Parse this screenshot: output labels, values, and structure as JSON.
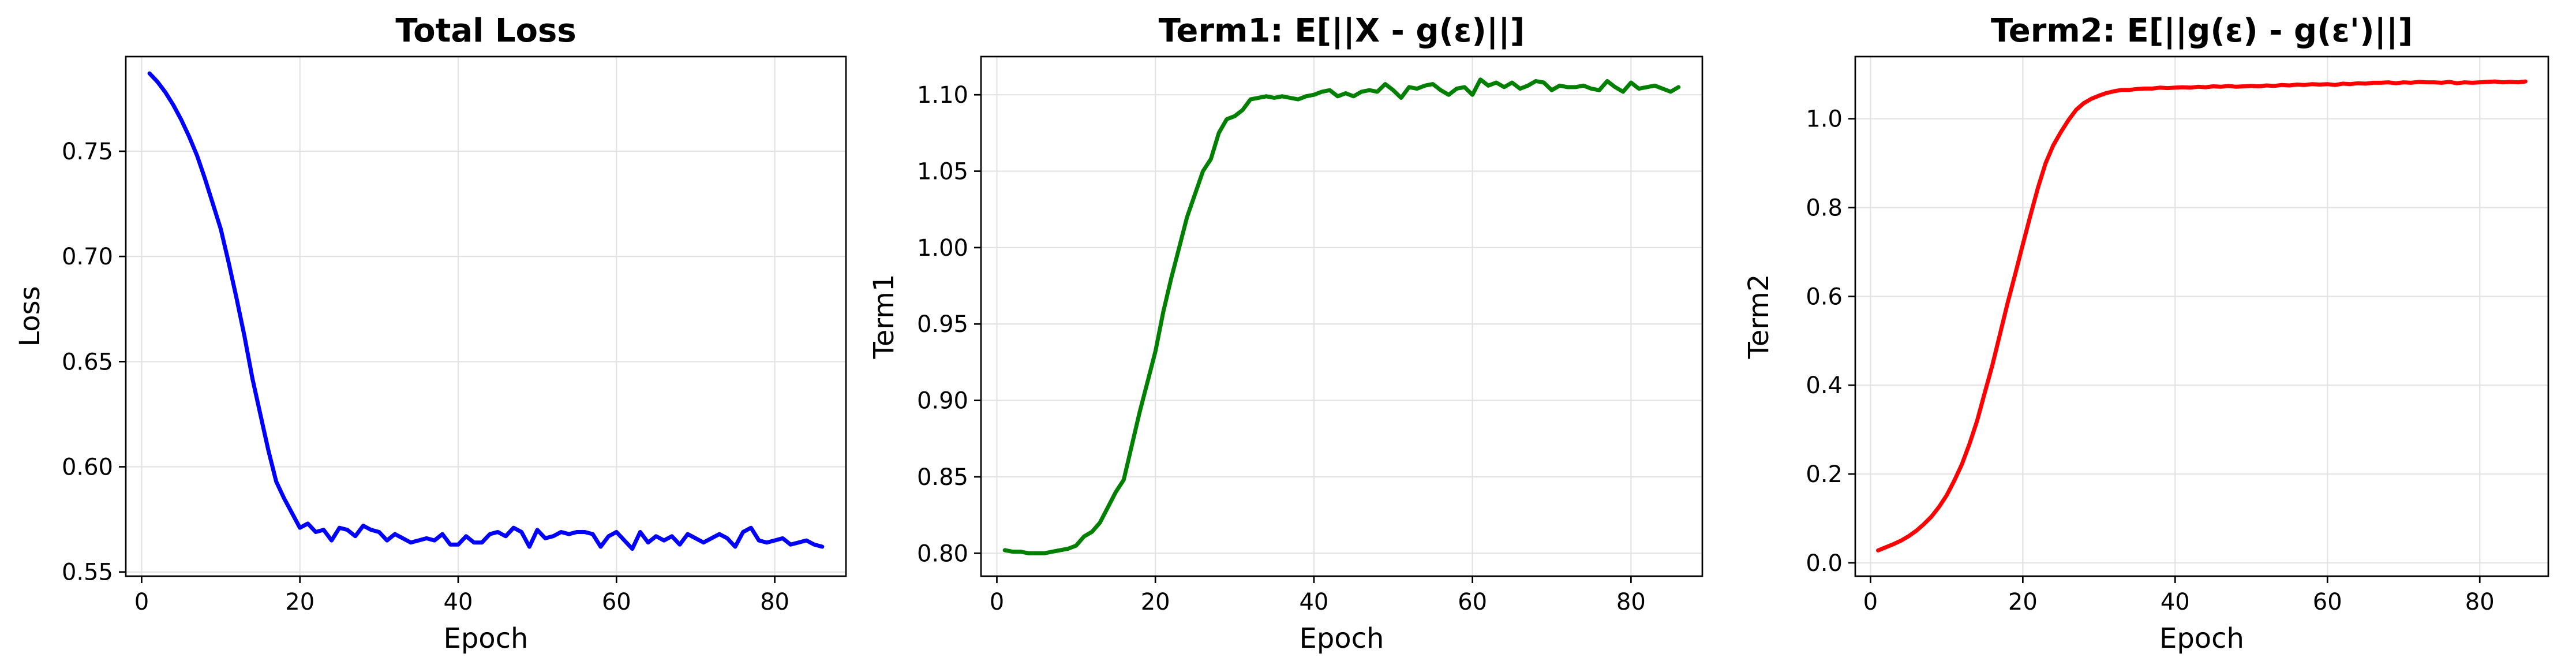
{
  "chart_data": [
    {
      "type": "line",
      "title": "Total Loss",
      "xlabel": "Epoch",
      "ylabel": "Loss",
      "xlim": [
        -2,
        89
      ],
      "ylim": [
        0.548,
        0.795
      ],
      "xticks": [
        0,
        20,
        40,
        60,
        80
      ],
      "yticks": [
        0.55,
        0.6,
        0.65,
        0.7,
        0.75
      ],
      "ytick_labels": [
        "0.55",
        "0.60",
        "0.65",
        "0.70",
        "0.75"
      ],
      "grid": true,
      "series": [
        {
          "color": "#0000ff",
          "x": [
            1,
            2,
            3,
            4,
            5,
            6,
            7,
            8,
            9,
            10,
            11,
            12,
            13,
            14,
            15,
            16,
            17,
            18,
            19,
            20,
            21,
            22,
            23,
            24,
            25,
            26,
            27,
            28,
            29,
            30,
            31,
            32,
            33,
            34,
            35,
            36,
            37,
            38,
            39,
            40,
            41,
            42,
            43,
            44,
            45,
            46,
            47,
            48,
            49,
            50,
            51,
            52,
            53,
            54,
            55,
            56,
            57,
            58,
            59,
            60,
            61,
            62,
            63,
            64,
            65,
            66,
            67,
            68,
            69,
            70,
            71,
            72,
            73,
            74,
            75,
            76,
            77,
            78,
            79,
            80,
            81,
            82,
            83,
            84,
            85,
            86
          ],
          "y": [
            0.787,
            0.783,
            0.778,
            0.772,
            0.765,
            0.757,
            0.748,
            0.737,
            0.725,
            0.713,
            0.697,
            0.68,
            0.662,
            0.642,
            0.625,
            0.608,
            0.593,
            0.585,
            0.578,
            0.571,
            0.573,
            0.569,
            0.57,
            0.565,
            0.571,
            0.57,
            0.567,
            0.572,
            0.57,
            0.569,
            0.565,
            0.568,
            0.566,
            0.564,
            0.565,
            0.566,
            0.565,
            0.568,
            0.563,
            0.563,
            0.567,
            0.564,
            0.564,
            0.568,
            0.569,
            0.567,
            0.571,
            0.569,
            0.562,
            0.57,
            0.566,
            0.567,
            0.569,
            0.568,
            0.569,
            0.569,
            0.568,
            0.562,
            0.567,
            0.569,
            0.565,
            0.561,
            0.569,
            0.564,
            0.567,
            0.565,
            0.567,
            0.563,
            0.568,
            0.566,
            0.564,
            0.566,
            0.568,
            0.566,
            0.562,
            0.569,
            0.571,
            0.565,
            0.564,
            0.565,
            0.566,
            0.563,
            0.564,
            0.565,
            0.563,
            0.562
          ]
        }
      ]
    },
    {
      "type": "line",
      "title": "Term1: E[||X - g(ε)||]",
      "xlabel": "Epoch",
      "ylabel": "Term1",
      "xlim": [
        -2,
        89
      ],
      "ylim": [
        0.785,
        1.125
      ],
      "xticks": [
        0,
        20,
        40,
        60,
        80
      ],
      "yticks": [
        0.8,
        0.85,
        0.9,
        0.95,
        1.0,
        1.05,
        1.1
      ],
      "ytick_labels": [
        "0.80",
        "0.85",
        "0.90",
        "0.95",
        "1.00",
        "1.05",
        "1.10"
      ],
      "grid": true,
      "series": [
        {
          "color": "#008000",
          "x": [
            1,
            2,
            3,
            4,
            5,
            6,
            7,
            8,
            9,
            10,
            11,
            12,
            13,
            14,
            15,
            16,
            17,
            18,
            19,
            20,
            21,
            22,
            23,
            24,
            25,
            26,
            27,
            28,
            29,
            30,
            31,
            32,
            33,
            34,
            35,
            36,
            37,
            38,
            39,
            40,
            41,
            42,
            43,
            44,
            45,
            46,
            47,
            48,
            49,
            50,
            51,
            52,
            53,
            54,
            55,
            56,
            57,
            58,
            59,
            60,
            61,
            62,
            63,
            64,
            65,
            66,
            67,
            68,
            69,
            70,
            71,
            72,
            73,
            74,
            75,
            76,
            77,
            78,
            79,
            80,
            81,
            82,
            83,
            84,
            85,
            86
          ],
          "y": [
            0.802,
            0.801,
            0.801,
            0.8,
            0.8,
            0.8,
            0.801,
            0.802,
            0.803,
            0.805,
            0.811,
            0.814,
            0.82,
            0.83,
            0.84,
            0.848,
            0.87,
            0.892,
            0.912,
            0.932,
            0.958,
            0.98,
            1.0,
            1.02,
            1.035,
            1.05,
            1.058,
            1.075,
            1.084,
            1.086,
            1.09,
            1.097,
            1.098,
            1.099,
            1.098,
            1.099,
            1.098,
            1.097,
            1.099,
            1.1,
            1.102,
            1.103,
            1.099,
            1.101,
            1.099,
            1.102,
            1.103,
            1.102,
            1.107,
            1.103,
            1.098,
            1.105,
            1.104,
            1.106,
            1.107,
            1.103,
            1.1,
            1.104,
            1.105,
            1.1,
            1.11,
            1.106,
            1.108,
            1.105,
            1.108,
            1.104,
            1.106,
            1.109,
            1.108,
            1.103,
            1.106,
            1.105,
            1.105,
            1.106,
            1.104,
            1.103,
            1.109,
            1.105,
            1.102,
            1.108,
            1.104,
            1.105,
            1.106,
            1.104,
            1.102,
            1.105
          ]
        }
      ]
    },
    {
      "type": "line",
      "title": "Term2: E[||g(ε) - g(ε')||]",
      "xlabel": "Epoch",
      "ylabel": "Term2",
      "xlim": [
        -2,
        89
      ],
      "ylim": [
        -0.03,
        1.14
      ],
      "xticks": [
        0,
        20,
        40,
        60,
        80
      ],
      "yticks": [
        0.0,
        0.2,
        0.4,
        0.6,
        0.8,
        1.0
      ],
      "ytick_labels": [
        "0.0",
        "0.2",
        "0.4",
        "0.6",
        "0.8",
        "1.0"
      ],
      "grid": true,
      "series": [
        {
          "color": "#ff0000",
          "x": [
            1,
            2,
            3,
            4,
            5,
            6,
            7,
            8,
            9,
            10,
            11,
            12,
            13,
            14,
            15,
            16,
            17,
            18,
            19,
            20,
            21,
            22,
            23,
            24,
            25,
            26,
            27,
            28,
            29,
            30,
            31,
            32,
            33,
            34,
            35,
            36,
            37,
            38,
            39,
            40,
            41,
            42,
            43,
            44,
            45,
            46,
            47,
            48,
            49,
            50,
            51,
            52,
            53,
            54,
            55,
            56,
            57,
            58,
            59,
            60,
            61,
            62,
            63,
            64,
            65,
            66,
            67,
            68,
            69,
            70,
            71,
            72,
            73,
            74,
            75,
            76,
            77,
            78,
            79,
            80,
            81,
            82,
            83,
            84,
            85,
            86
          ],
          "y": [
            0.028,
            0.035,
            0.042,
            0.05,
            0.06,
            0.072,
            0.087,
            0.104,
            0.126,
            0.152,
            0.185,
            0.222,
            0.268,
            0.32,
            0.383,
            0.445,
            0.515,
            0.585,
            0.65,
            0.717,
            0.782,
            0.845,
            0.9,
            0.94,
            0.97,
            0.997,
            1.02,
            1.035,
            1.045,
            1.052,
            1.058,
            1.062,
            1.065,
            1.065,
            1.067,
            1.068,
            1.068,
            1.07,
            1.069,
            1.07,
            1.071,
            1.07,
            1.072,
            1.071,
            1.073,
            1.072,
            1.074,
            1.072,
            1.073,
            1.074,
            1.073,
            1.075,
            1.074,
            1.076,
            1.075,
            1.077,
            1.076,
            1.078,
            1.077,
            1.078,
            1.076,
            1.079,
            1.078,
            1.08,
            1.079,
            1.081,
            1.081,
            1.082,
            1.08,
            1.082,
            1.081,
            1.083,
            1.082,
            1.082,
            1.081,
            1.083,
            1.08,
            1.082,
            1.081,
            1.082,
            1.083,
            1.084,
            1.082,
            1.083,
            1.082,
            1.084
          ]
        }
      ]
    }
  ]
}
